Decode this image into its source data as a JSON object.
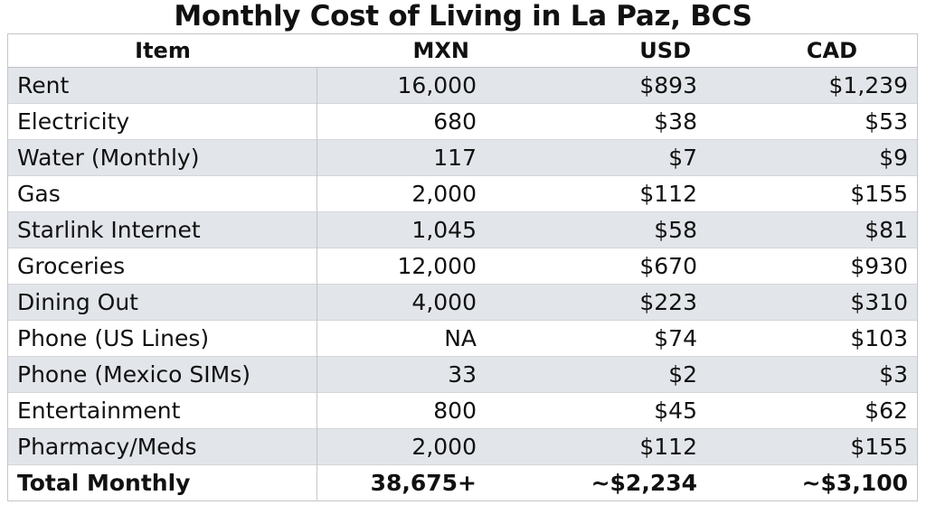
{
  "title": "Monthly Cost of Living in La Paz, BCS",
  "table": {
    "headers": {
      "item": "Item",
      "mxn": "MXN",
      "usd": "USD",
      "cad": "CAD"
    },
    "rows": [
      {
        "item": "Rent",
        "mxn": "16,000",
        "usd": "$893",
        "cad": "$1,239"
      },
      {
        "item": "Electricity",
        "mxn": "680",
        "usd": "$38",
        "cad": "$53"
      },
      {
        "item": "Water (Monthly)",
        "mxn": "117",
        "usd": "$7",
        "cad": "$9"
      },
      {
        "item": "Gas",
        "mxn": "2,000",
        "usd": "$112",
        "cad": "$155"
      },
      {
        "item": "Starlink Internet",
        "mxn": "1,045",
        "usd": "$58",
        "cad": "$81"
      },
      {
        "item": "Groceries",
        "mxn": "12,000",
        "usd": "$670",
        "cad": "$930"
      },
      {
        "item": "Dining Out",
        "mxn": "4,000",
        "usd": "$223",
        "cad": "$310"
      },
      {
        "item": "Phone (US Lines)",
        "mxn": "NA",
        "usd": "$74",
        "cad": "$103"
      },
      {
        "item": "Phone (Mexico SIMs)",
        "mxn": "33",
        "usd": "$2",
        "cad": "$3"
      },
      {
        "item": "Entertainment",
        "mxn": "800",
        "usd": "$45",
        "cad": "$62"
      },
      {
        "item": "Pharmacy/Meds",
        "mxn": "2,000",
        "usd": "$112",
        "cad": "$155"
      }
    ],
    "total": {
      "item": "Total Monthly",
      "mxn": "38,675+",
      "usd": "~$2,234",
      "cad": "~$3,100"
    }
  },
  "colors": {
    "shaded_row": "#e2e5e9",
    "border": "#c4c6c9",
    "text": "#111111"
  }
}
